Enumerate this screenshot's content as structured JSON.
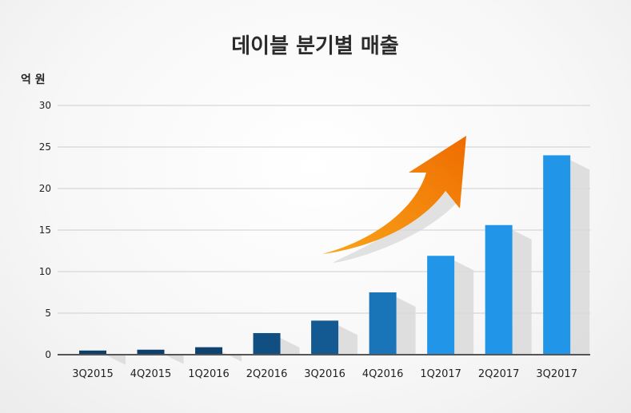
{
  "chart_data": {
    "type": "bar",
    "title": "데이블 분기별 매출",
    "ylabel": "억 원",
    "xlabel": "",
    "categories": [
      "3Q2015",
      "4Q2015",
      "1Q2016",
      "2Q2016",
      "3Q2016",
      "4Q2016",
      "1Q2017",
      "2Q2017",
      "3Q2017"
    ],
    "values": [
      0.5,
      0.6,
      0.9,
      2.6,
      4.1,
      7.5,
      11.9,
      15.6,
      24.0
    ],
    "yticks": [
      "0",
      "5",
      "10",
      "15",
      "20",
      "25",
      "30"
    ],
    "ylim": [
      0,
      30
    ],
    "grid": true,
    "legend": "none",
    "colors": {
      "bar_dark": "#0d3f6b",
      "bar_light": "#2196e8",
      "arrow_start": "#f9a51a",
      "arrow_end": "#ef6c00"
    }
  }
}
